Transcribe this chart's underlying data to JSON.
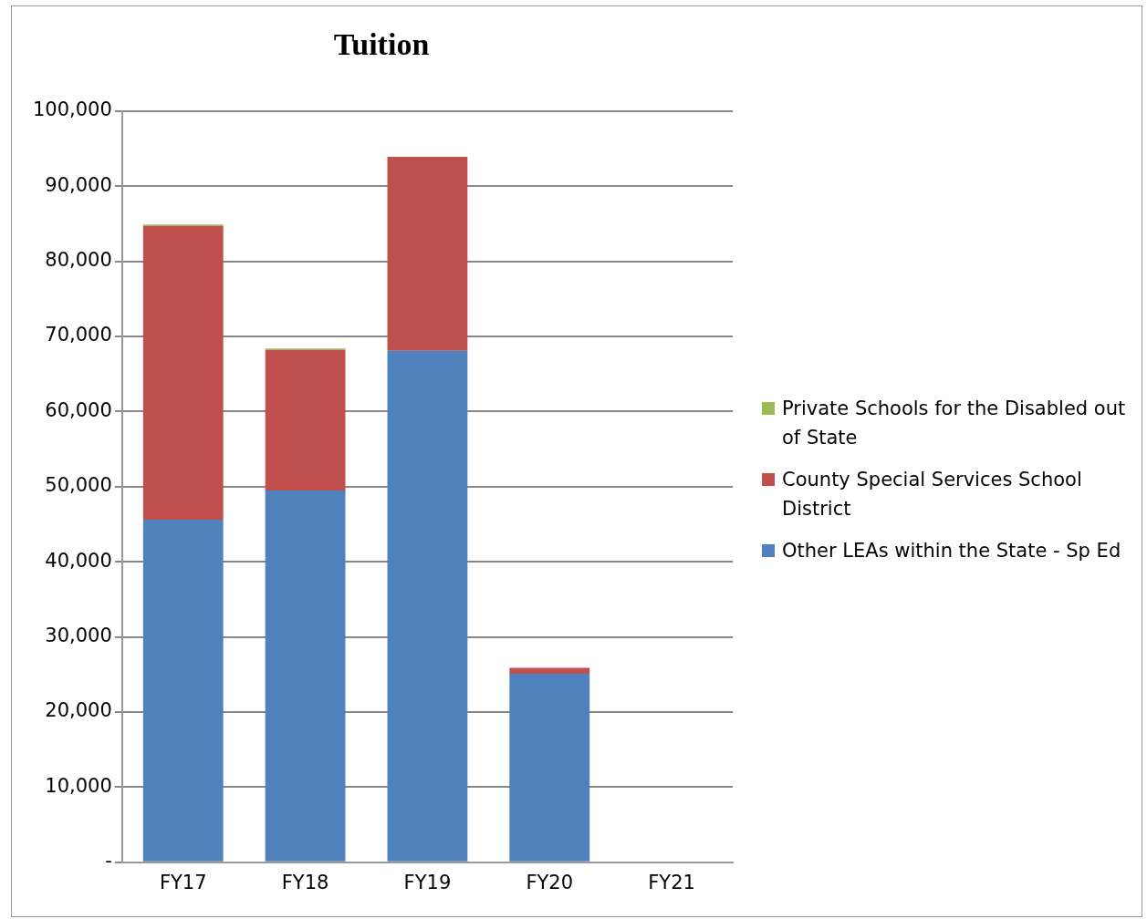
{
  "chart_data": {
    "type": "bar",
    "title": "Tuition",
    "stacked": true,
    "categories": [
      "FY17",
      "FY18",
      "FY19",
      "FY20",
      "FY21"
    ],
    "series": [
      {
        "name": "Other LEAs within the State - Sp Ed",
        "color": "#4f81bd",
        "values": [
          45600,
          49500,
          68100,
          25100,
          0
        ]
      },
      {
        "name": "County Special Services School District",
        "color": "#c0504d",
        "values": [
          39100,
          18700,
          25800,
          800,
          0
        ]
      },
      {
        "name": "Private Schools for the Disabled out of State",
        "color": "#9bbb59",
        "values": [
          200,
          200,
          0,
          0,
          0
        ]
      }
    ],
    "ylim": [
      0,
      100000
    ],
    "yticks": [
      {
        "value": 0,
        "label": "-"
      },
      {
        "value": 10000,
        "label": "10,000"
      },
      {
        "value": 20000,
        "label": "20,000"
      },
      {
        "value": 30000,
        "label": "30,000"
      },
      {
        "value": 40000,
        "label": "40,000"
      },
      {
        "value": 50000,
        "label": "50,000"
      },
      {
        "value": 60000,
        "label": "60,000"
      },
      {
        "value": 70000,
        "label": "70,000"
      },
      {
        "value": 80000,
        "label": "80,000"
      },
      {
        "value": 90000,
        "label": "90,000"
      },
      {
        "value": 100000,
        "label": "100,000"
      }
    ],
    "grid": "y",
    "legend": "right"
  }
}
